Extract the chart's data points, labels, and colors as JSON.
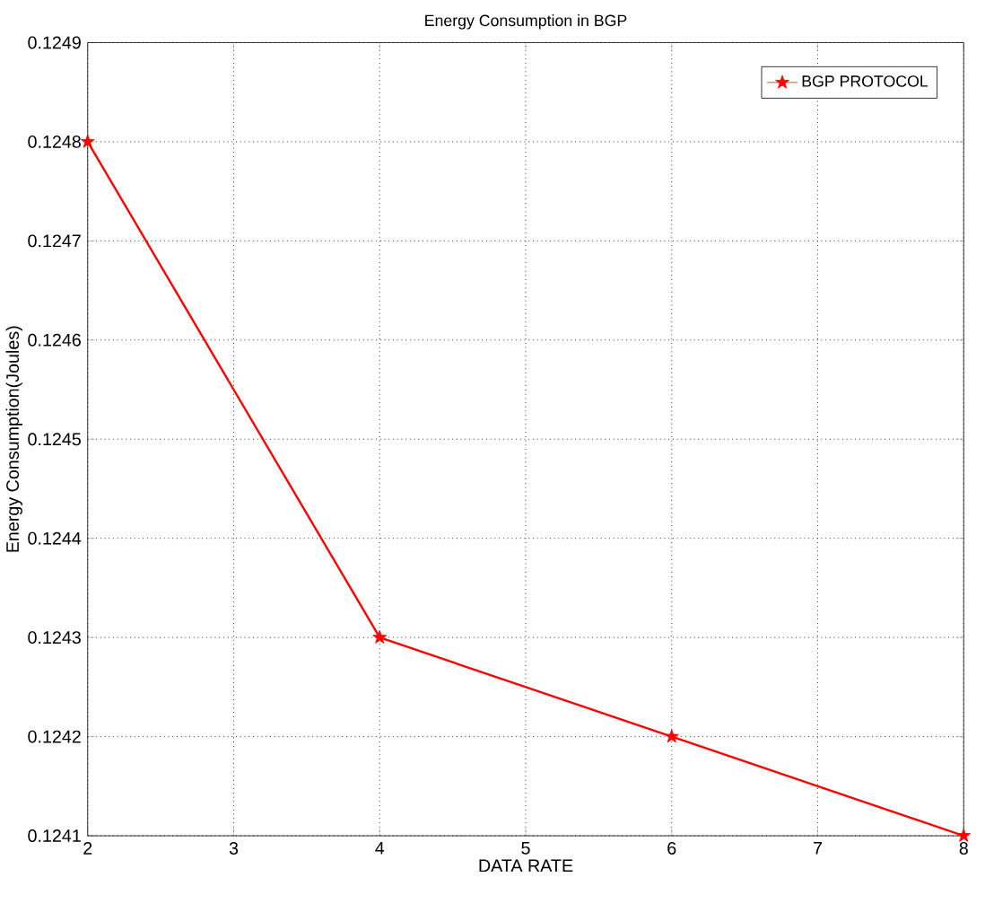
{
  "chart_data": {
    "type": "line",
    "title": "Energy Consumption in BGP",
    "xlabel": "DATA RATE",
    "ylabel": "Energy Consumption(Joules)",
    "x": [
      2,
      4,
      6,
      8
    ],
    "series": [
      {
        "name": "BGP PROTOCOL",
        "color": "#ff0000",
        "values": [
          0.1248,
          0.1243,
          0.1242,
          0.1241
        ]
      }
    ],
    "xlim": [
      2,
      8
    ],
    "xticks": [
      2,
      3,
      4,
      5,
      6,
      7,
      8
    ],
    "ylim": [
      0.1241,
      0.1249
    ],
    "yticks": [
      0.1241,
      0.1242,
      0.1243,
      0.1244,
      0.1245,
      0.1246,
      0.1247,
      0.1248,
      0.1249
    ],
    "grid": true,
    "legend": "top right",
    "marker": "star",
    "line_style": "solid"
  }
}
